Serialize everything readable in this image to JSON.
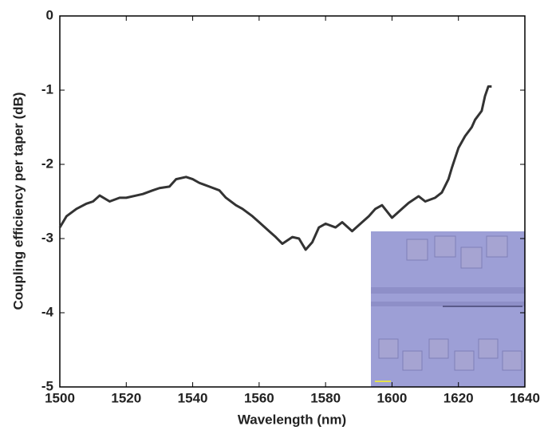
{
  "chart_data": {
    "type": "line",
    "xlabel": "Wavelength (nm)",
    "ylabel": "Coupling efficiency per taper (dB)",
    "x": [
      1500,
      1502,
      1505,
      1508,
      1510,
      1512,
      1515,
      1518,
      1520,
      1523,
      1525,
      1528,
      1530,
      1533,
      1535,
      1538,
      1540,
      1542,
      1545,
      1548,
      1550,
      1553,
      1555,
      1558,
      1560,
      1563,
      1565,
      1567,
      1570,
      1572,
      1574,
      1576,
      1578,
      1580,
      1583,
      1585,
      1588,
      1590,
      1593,
      1595,
      1597,
      1600,
      1603,
      1605,
      1608,
      1610,
      1613,
      1615,
      1617,
      1618,
      1620,
      1622,
      1624,
      1625,
      1627,
      1628,
      1629,
      1630
    ],
    "series": [
      {
        "color": "#333333",
        "values": [
          -2.85,
          -2.7,
          -2.6,
          -2.53,
          -2.5,
          -2.42,
          -2.5,
          -2.45,
          -2.45,
          -2.42,
          -2.4,
          -2.35,
          -2.32,
          -2.3,
          -2.2,
          -2.17,
          -2.2,
          -2.25,
          -2.3,
          -2.35,
          -2.45,
          -2.55,
          -2.6,
          -2.7,
          -2.78,
          -2.9,
          -2.98,
          -3.07,
          -2.98,
          -3.0,
          -3.15,
          -3.05,
          -2.85,
          -2.8,
          -2.85,
          -2.78,
          -2.9,
          -2.82,
          -2.7,
          -2.6,
          -2.55,
          -2.72,
          -2.6,
          -2.52,
          -2.43,
          -2.5,
          -2.45,
          -2.38,
          -2.2,
          -2.05,
          -1.78,
          -1.62,
          -1.5,
          -1.4,
          -1.28,
          -1.08,
          -0.95,
          -0.95
        ]
      }
    ],
    "xlim": [
      1500,
      1640
    ],
    "xticks": [
      1500,
      1520,
      1540,
      1560,
      1580,
      1600,
      1620,
      1640
    ],
    "ylim": [
      -5,
      0
    ],
    "yticks": [
      -5,
      -4,
      -3,
      -2,
      -1,
      0
    ]
  }
}
